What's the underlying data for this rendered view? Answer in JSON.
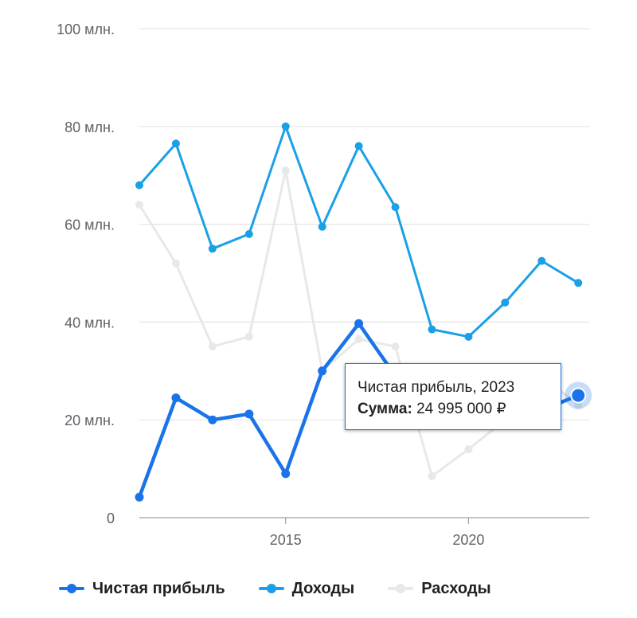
{
  "chart_data": {
    "type": "line",
    "x": [
      2011,
      2012,
      2013,
      2014,
      2015,
      2016,
      2017,
      2018,
      2019,
      2020,
      2021,
      2022,
      2023
    ],
    "ylim": [
      0,
      100
    ],
    "xlim": [
      2011,
      2023.3
    ],
    "y_ticks": [
      {
        "value": 0,
        "label": "0"
      },
      {
        "value": 20,
        "label": "20 млн."
      },
      {
        "value": 40,
        "label": "40 млн."
      },
      {
        "value": 60,
        "label": "60 млн."
      },
      {
        "value": 80,
        "label": "80 млн."
      },
      {
        "value": 100,
        "label": "100 млн."
      }
    ],
    "x_ticks": [
      {
        "value": 2015,
        "label": "2015"
      },
      {
        "value": 2020,
        "label": "2020"
      }
    ],
    "grid": true,
    "legend_position": "bottom",
    "series": [
      {
        "name": "Расходы",
        "color": "#e8e8e8",
        "values": [
          64,
          52,
          35,
          37,
          71,
          30,
          36.5,
          35,
          8.5,
          14,
          20,
          29,
          23
        ]
      },
      {
        "name": "Доходы",
        "color": "#1aa0e6",
        "values": [
          68,
          76.5,
          55,
          58,
          80,
          59.5,
          76,
          63.5,
          38.5,
          37,
          44,
          52.5,
          48
        ]
      },
      {
        "name": "Чистая прибыль",
        "color": "#1a73e8",
        "values": [
          4.2,
          24.5,
          20,
          21.2,
          9,
          30,
          39.7,
          29,
          30,
          24,
          24.5,
          22,
          25
        ]
      }
    ],
    "highlight": {
      "series": "Чистая прибыль",
      "x": 2023,
      "value": 25
    }
  },
  "tooltip": {
    "title": "Чистая прибыль, 2023",
    "value_label": "Сумма:",
    "value": "24 995 000 ₽"
  },
  "legend": [
    {
      "label": "Чистая прибыль",
      "color": "#1a73e8"
    },
    {
      "label": "Доходы",
      "color": "#1aa0e6"
    },
    {
      "label": "Расходы",
      "color": "#e8e8e8"
    }
  ]
}
